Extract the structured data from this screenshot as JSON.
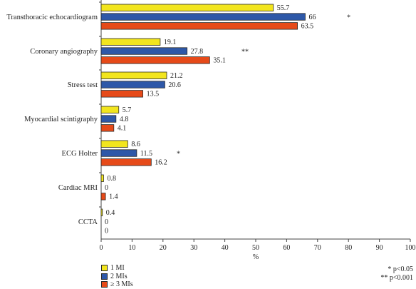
{
  "chart_data": {
    "type": "bar",
    "orientation": "horizontal",
    "categories": [
      "Transthoracic echocardiogram",
      "Coronary angiography",
      "Stress test",
      "Myocardial scintigraphy",
      "ECG Holter",
      "Cardiac MRI",
      "CCTA"
    ],
    "series": [
      {
        "name": "1 MI",
        "color": "#f2e51e",
        "values": [
          55.7,
          19.1,
          21.2,
          5.7,
          8.6,
          0.8,
          0.4
        ],
        "labels": [
          "55.7",
          "19.1",
          "21.2",
          "5.7",
          "8.6",
          "0.8",
          "0.4"
        ]
      },
      {
        "name": "2 MIs",
        "color": "#2e58a8",
        "values": [
          66,
          27.8,
          20.6,
          4.8,
          11.5,
          0,
          0
        ],
        "labels": [
          "66",
          "27.8",
          "20.6",
          "4.8",
          "11.5",
          "0",
          "0"
        ]
      },
      {
        "name": "≥ 3 MIs",
        "color": "#e64a19",
        "values": [
          63.5,
          35.1,
          13.5,
          4.1,
          16.2,
          1.4,
          0
        ],
        "labels": [
          "63.5",
          "35.1",
          "13.5",
          "4.1",
          "16.2",
          "1.4",
          "0"
        ]
      }
    ],
    "significance": [
      "*",
      "**",
      "",
      "",
      "*",
      "",
      ""
    ],
    "xlabel": "%",
    "xlim": [
      0,
      100
    ],
    "xticks": [
      0,
      10,
      20,
      30,
      40,
      50,
      60,
      70,
      80,
      90,
      100
    ],
    "legend_position": "bottom-left",
    "notes": [
      "* p<0.05",
      "** p<0.001"
    ],
    "grid": false
  }
}
